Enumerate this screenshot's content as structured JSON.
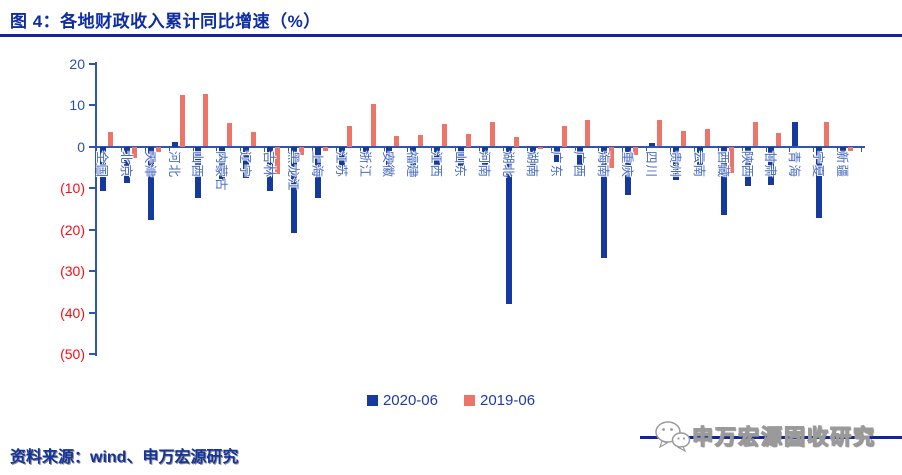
{
  "title": "图 4：各地财政收入累计同比增速（%）",
  "source_note": "资料来源：wind、申万宏源研究",
  "watermark": {
    "text": "申万宏源固收研究",
    "icon": "wechat-icon"
  },
  "legend": [
    {
      "label": "2020-06",
      "color": "#16399d"
    },
    {
      "label": "2019-06",
      "color": "#ec7468"
    }
  ],
  "colors": {
    "bar_2020": "#16399d",
    "bar_2019": "#ec7468",
    "axis": "#2e55b0",
    "ytick_positive": "#2b50a8",
    "ytick_negative": "#fb0b14",
    "xlabel": "#4a6cc4",
    "title": "#0d2da0",
    "rule": "#14239a"
  },
  "chart_data": {
    "type": "bar",
    "title": "各地财政收入累计同比增速（%）",
    "xlabel": "",
    "ylabel": "",
    "ylim": [
      -50,
      20
    ],
    "yticks": [
      20,
      10,
      0,
      -10,
      -20,
      -30,
      -40,
      -50
    ],
    "ytick_label_style": "negative values shown in parentheses and red",
    "grid": false,
    "legend_position": "bottom-center",
    "categories": [
      "全国",
      "北京",
      "天津",
      "河北",
      "山西",
      "内蒙古",
      "辽宁",
      "吉林",
      "黑龙江",
      "上海",
      "江苏",
      "浙江",
      "安徽",
      "福建",
      "江西",
      "山东",
      "河南",
      "湖北",
      "湖南",
      "广东",
      "广西",
      "海南",
      "重庆",
      "四川",
      "贵州",
      "云南",
      "西藏",
      "陕西",
      "甘肃",
      "青海",
      "宁夏",
      "新疆"
    ],
    "series": [
      {
        "name": "2020-06",
        "values": [
          -10.8,
          -8.8,
          -17.6,
          1.2,
          -12.4,
          -8.2,
          -7.6,
          -10.6,
          -20.8,
          -12.4,
          -6.0,
          -2.8,
          -6.8,
          -7.4,
          -5.2,
          -4.7,
          -5.0,
          -38.0,
          -7.0,
          -3.8,
          -7.2,
          -26.8,
          -11.6,
          0.8,
          -8.0,
          -6.4,
          -16.4,
          -9.6,
          -9.2,
          5.8,
          -17.2,
          -2.9
        ]
      },
      {
        "name": "2019-06",
        "values": [
          3.4,
          -2.8,
          -1.2,
          12.4,
          12.6,
          5.6,
          3.6,
          -6.6,
          -2.0,
          -1.0,
          5.0,
          10.2,
          2.5,
          2.8,
          5.5,
          3.0,
          6.0,
          2.4,
          -0.5,
          5.0,
          6.4,
          -5.2,
          -2.0,
          6.4,
          3.8,
          4.2,
          -6.4,
          6.0,
          3.2,
          0.0,
          6.0,
          -1.0
        ]
      }
    ]
  }
}
